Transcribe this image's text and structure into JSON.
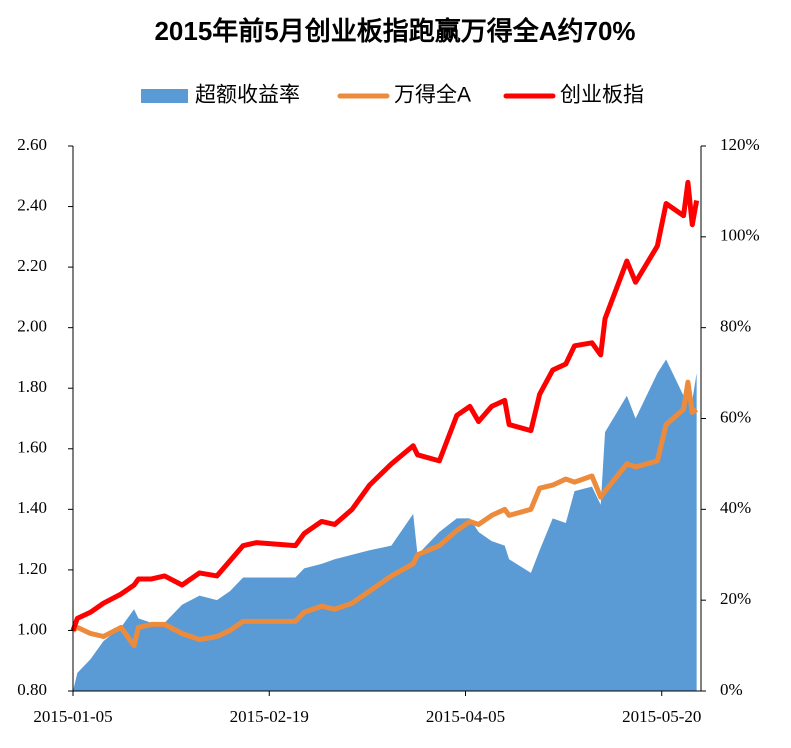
{
  "chart_data": {
    "type": "combo",
    "title": "2015年前5月创业板指跑赢万得全A约70%",
    "x": [
      "2015-01-05",
      "2015-01-06",
      "2015-01-09",
      "2015-01-12",
      "2015-01-16",
      "2015-01-19",
      "2015-01-20",
      "2015-01-23",
      "2015-01-26",
      "2015-01-30",
      "2015-02-03",
      "2015-02-07",
      "2015-02-10",
      "2015-02-13",
      "2015-02-16",
      "2015-02-25",
      "2015-02-27",
      "2015-03-03",
      "2015-03-06",
      "2015-03-10",
      "2015-03-14",
      "2015-03-19",
      "2015-03-24",
      "2015-03-25",
      "2015-03-30",
      "2015-04-03",
      "2015-04-06",
      "2015-04-08",
      "2015-04-11",
      "2015-04-14",
      "2015-04-15",
      "2015-04-20",
      "2015-04-22",
      "2015-04-25",
      "2015-04-28",
      "2015-04-30",
      "2015-05-04",
      "2015-05-06",
      "2015-05-07",
      "2015-05-12",
      "2015-05-14",
      "2015-05-19",
      "2015-05-21",
      "2015-05-25",
      "2015-05-26",
      "2015-05-27",
      "2015-05-28"
    ],
    "series": [
      {
        "name": "超额收益率",
        "kind": "area",
        "axis": "y2",
        "color": "#5b9bd5",
        "values": [
          0,
          4,
          7,
          11,
          14,
          18,
          16,
          15,
          15,
          19,
          21,
          20,
          22,
          25,
          25,
          25,
          27,
          28,
          29,
          30,
          31,
          32,
          39,
          30,
          35,
          38,
          38,
          35,
          33,
          32,
          29,
          26,
          31,
          38,
          37,
          44,
          45,
          41,
          57,
          65,
          60,
          70,
          73,
          65,
          68,
          64,
          70
        ]
      },
      {
        "name": "万得全A",
        "kind": "line",
        "axis": "y",
        "color": "#ed8b3c",
        "values": [
          1.0,
          1.01,
          0.99,
          0.98,
          1.01,
          0.95,
          1.01,
          1.02,
          1.02,
          0.99,
          0.97,
          0.98,
          1.0,
          1.03,
          1.03,
          1.03,
          1.06,
          1.08,
          1.07,
          1.09,
          1.13,
          1.18,
          1.22,
          1.25,
          1.28,
          1.33,
          1.36,
          1.35,
          1.38,
          1.4,
          1.38,
          1.4,
          1.47,
          1.48,
          1.5,
          1.49,
          1.51,
          1.44,
          1.46,
          1.55,
          1.54,
          1.56,
          1.68,
          1.73,
          1.82,
          1.72,
          1.73
        ]
      },
      {
        "name": "创业板指",
        "kind": "line",
        "axis": "y",
        "color": "#ff0000",
        "values": [
          1.0,
          1.04,
          1.06,
          1.09,
          1.12,
          1.15,
          1.17,
          1.17,
          1.18,
          1.15,
          1.19,
          1.18,
          1.23,
          1.28,
          1.29,
          1.28,
          1.32,
          1.36,
          1.35,
          1.4,
          1.48,
          1.55,
          1.61,
          1.58,
          1.56,
          1.71,
          1.74,
          1.69,
          1.74,
          1.76,
          1.68,
          1.66,
          1.78,
          1.86,
          1.88,
          1.94,
          1.95,
          1.91,
          2.03,
          2.22,
          2.15,
          2.27,
          2.41,
          2.37,
          2.48,
          2.34,
          2.42
        ]
      }
    ],
    "xlim": [
      "2015-01-05",
      "2015-05-29"
    ],
    "xticks": [
      "2015-01-05",
      "2015-02-19",
      "2015-04-05",
      "2015-05-20"
    ],
    "ylim": [
      0.8,
      2.6
    ],
    "yticks": [
      {
        "value": 0.8,
        "label": "0.80"
      },
      {
        "value": 1.0,
        "label": "1.00"
      },
      {
        "value": 1.2,
        "label": "1.20"
      },
      {
        "value": 1.4,
        "label": "1.40"
      },
      {
        "value": 1.6,
        "label": "1.60"
      },
      {
        "value": 1.8,
        "label": "1.80"
      },
      {
        "value": 2.0,
        "label": "2.00"
      },
      {
        "value": 2.2,
        "label": "2.20"
      },
      {
        "value": 2.4,
        "label": "2.40"
      },
      {
        "value": 2.6,
        "label": "2.60"
      }
    ],
    "y2lim": [
      0,
      120
    ],
    "y2ticks": [
      {
        "value": 0,
        "label": "0%"
      },
      {
        "value": 20,
        "label": "20%"
      },
      {
        "value": 40,
        "label": "40%"
      },
      {
        "value": 60,
        "label": "60%"
      },
      {
        "value": 80,
        "label": "80%"
      },
      {
        "value": 100,
        "label": "100%"
      },
      {
        "value": 120,
        "label": "120%"
      }
    ],
    "legend": "top"
  }
}
